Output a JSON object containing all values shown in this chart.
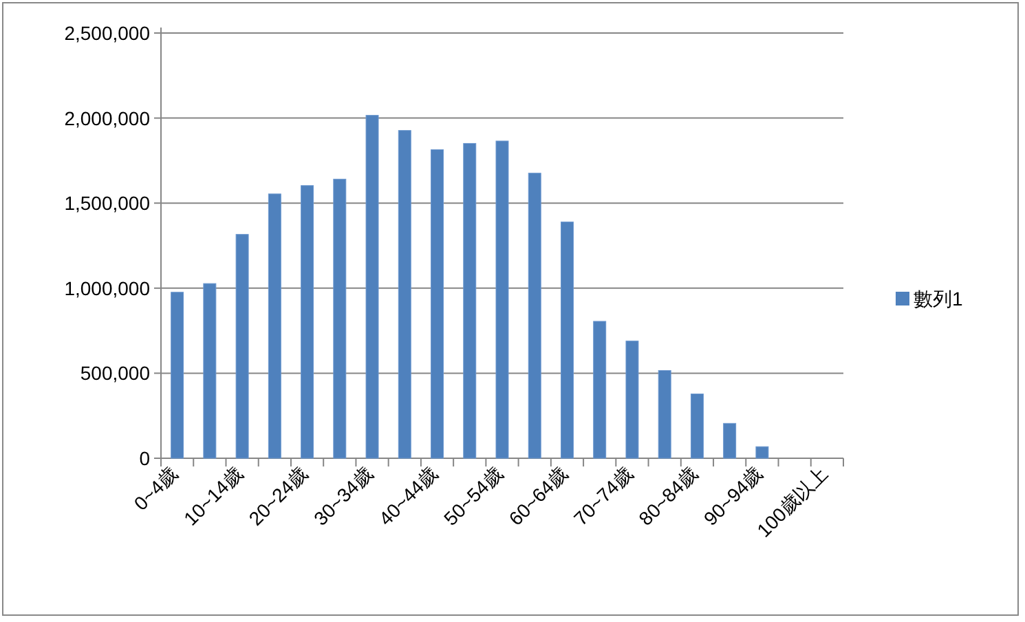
{
  "chart_data": {
    "type": "bar",
    "categories": [
      "0~4歲",
      null,
      "10~14歲",
      null,
      "20~24歲",
      null,
      "30~34歲",
      null,
      "40~44歲",
      null,
      "50~54歲",
      null,
      "60~64歲",
      null,
      "70~74歲",
      null,
      "80~84歲",
      null,
      "90~94歲",
      null,
      "100歲以上"
    ],
    "series": [
      {
        "name": "數列1",
        "color": "#4f81bd",
        "values": [
          976000,
          1027000,
          1316000,
          1554000,
          1603000,
          1641000,
          2016000,
          1927000,
          1814000,
          1851000,
          1865000,
          1676000,
          1389000,
          805000,
          689000,
          516000,
          378000,
          205000,
          68000,
          0,
          0
        ]
      }
    ],
    "ylim": [
      0,
      2500000
    ],
    "yticks": [
      {
        "value": 0,
        "label": "0"
      },
      {
        "value": 500000,
        "label": "500,000"
      },
      {
        "value": 1000000,
        "label": "1,000,000"
      },
      {
        "value": 1500000,
        "label": "1,500,000"
      },
      {
        "value": 2000000,
        "label": "2,000,000"
      },
      {
        "value": 2500000,
        "label": "2,500,000"
      }
    ],
    "grid": "y",
    "legend": "right"
  }
}
